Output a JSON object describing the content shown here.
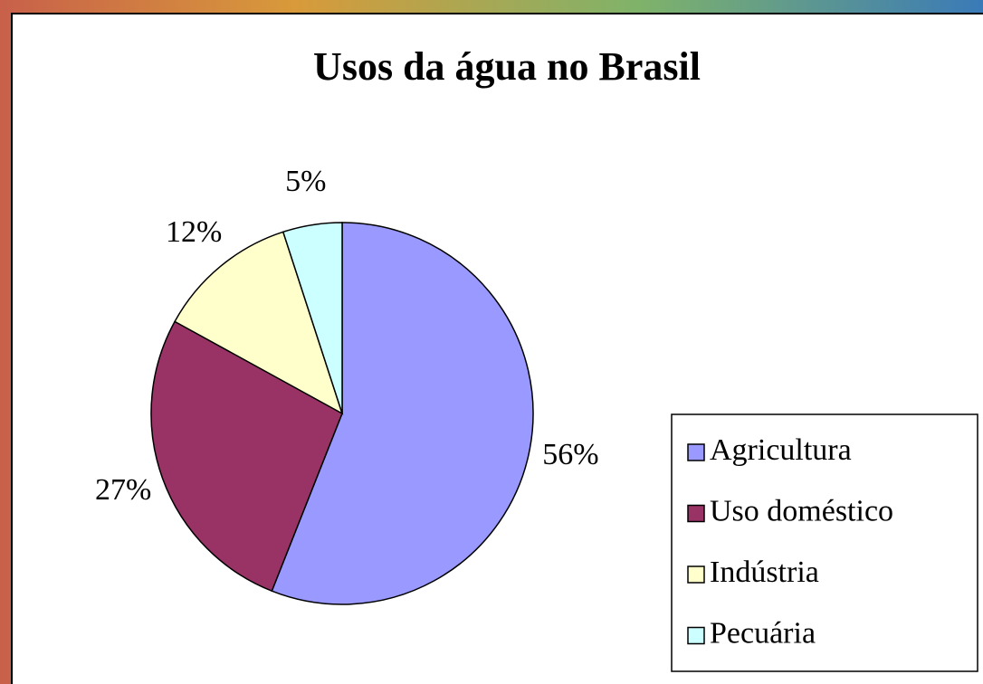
{
  "chart_data": {
    "type": "pie",
    "title": "Usos da água no Brasil",
    "categories": [
      "Agricultura",
      "Uso doméstico",
      "Indústria",
      "Pecuária"
    ],
    "values": [
      56,
      27,
      12,
      5
    ],
    "value_labels": [
      "56%",
      "27%",
      "12%",
      "5%"
    ],
    "colors": [
      "#9999ff",
      "#993366",
      "#ffffcc",
      "#ccffff"
    ],
    "legend": "right"
  }
}
